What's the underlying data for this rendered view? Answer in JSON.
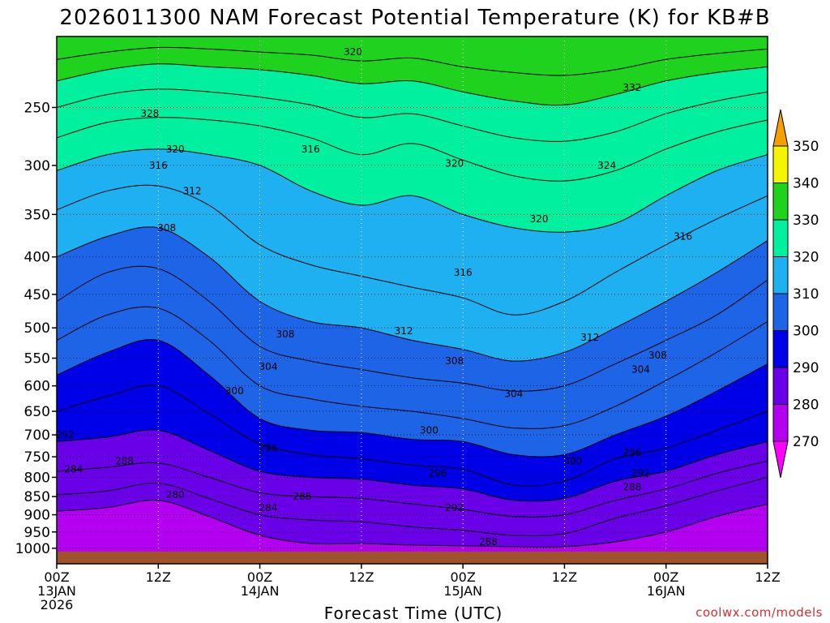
{
  "chart_data": {
    "type": "heatmap",
    "title": "2026011300 NAM Forecast Potential Temperature (K) for KB#B",
    "xlabel": "Forecast Time (UTC)",
    "ylabel": "",
    "credit": "coolwx.com/models",
    "y_axis": {
      "scale": "log",
      "range": [
        200,
        1050
      ],
      "ticks": [
        250,
        300,
        350,
        400,
        450,
        500,
        550,
        600,
        650,
        700,
        750,
        800,
        850,
        900,
        950,
        1000
      ]
    },
    "x_axis": {
      "range_hours": [
        0,
        84
      ],
      "ticks": [
        {
          "hour": 0,
          "line1": "00Z",
          "line2": "13JAN",
          "line3": "2026"
        },
        {
          "hour": 12,
          "line1": "12Z",
          "line2": "",
          "line3": ""
        },
        {
          "hour": 24,
          "line1": "00Z",
          "line2": "14JAN",
          "line3": ""
        },
        {
          "hour": 36,
          "line1": "12Z",
          "line2": "",
          "line3": ""
        },
        {
          "hour": 48,
          "line1": "00Z",
          "line2": "15JAN",
          "line3": ""
        },
        {
          "hour": 60,
          "line1": "12Z",
          "line2": "",
          "line3": ""
        },
        {
          "hour": 72,
          "line1": "00Z",
          "line2": "16JAN",
          "line3": ""
        },
        {
          "hour": 84,
          "line1": "12Z",
          "line2": "",
          "line3": ""
        }
      ]
    },
    "colorbar": {
      "levels": [
        270,
        280,
        290,
        300,
        310,
        320,
        330,
        340,
        350
      ],
      "colors": [
        "#ff00ff",
        "#b400f0",
        "#6a00e8",
        "#0000e8",
        "#1e64e6",
        "#1eb0f0",
        "#00f0a0",
        "#1ed21e",
        "#f5f500",
        "#f5a000"
      ]
    },
    "isentrope_heights": [
      {
        "theta": 280,
        "p": [
          890,
          880,
          860,
          905,
          960,
          985,
          985,
          990,
          992,
          995,
          995,
          980,
          950,
          905,
          870
        ]
      },
      {
        "theta": 284,
        "p": [
          845,
          835,
          815,
          855,
          900,
          915,
          920,
          935,
          945,
          960,
          955,
          910,
          875,
          835,
          800
        ]
      },
      {
        "theta": 288,
        "p": [
          785,
          775,
          765,
          800,
          840,
          850,
          855,
          870,
          885,
          905,
          900,
          860,
          830,
          790,
          760
        ]
      },
      {
        "theta": 292,
        "p": [
          715,
          705,
          690,
          735,
          785,
          800,
          805,
          820,
          830,
          860,
          855,
          810,
          785,
          745,
          715
        ]
      },
      {
        "theta": 296,
        "p": [
          650,
          620,
          600,
          655,
          720,
          745,
          755,
          770,
          780,
          820,
          810,
          755,
          730,
          690,
          650
        ]
      },
      {
        "theta": 300,
        "p": [
          580,
          540,
          520,
          580,
          665,
          690,
          695,
          710,
          715,
          745,
          745,
          700,
          660,
          610,
          560
        ]
      },
      {
        "theta": 304,
        "p": [
          520,
          480,
          470,
          520,
          600,
          625,
          640,
          650,
          665,
          685,
          680,
          640,
          590,
          540,
          490
        ]
      },
      {
        "theta": 308,
        "p": [
          460,
          420,
          415,
          460,
          530,
          555,
          570,
          585,
          595,
          610,
          600,
          560,
          520,
          480,
          430
        ]
      },
      {
        "theta": 312,
        "p": [
          400,
          375,
          365,
          400,
          460,
          490,
          500,
          520,
          535,
          555,
          540,
          500,
          460,
          420,
          380
        ]
      },
      {
        "theta": 316,
        "p": [
          345,
          325,
          320,
          340,
          385,
          410,
          425,
          440,
          455,
          480,
          460,
          420,
          385,
          355,
          330
        ]
      },
      {
        "theta": 320,
        "p": [
          305,
          290,
          285,
          290,
          300,
          325,
          340,
          330,
          350,
          365,
          370,
          360,
          330,
          305,
          290
        ]
      },
      {
        "theta": 324,
        "p": [
          275,
          262,
          258,
          260,
          265,
          275,
          290,
          280,
          295,
          310,
          315,
          305,
          285,
          270,
          260
        ]
      },
      {
        "theta": 328,
        "p": [
          250,
          240,
          236,
          238,
          242,
          248,
          258,
          255,
          265,
          275,
          278,
          270,
          255,
          245,
          238
        ]
      },
      {
        "theta": 332,
        "p": [
          230,
          222,
          218,
          220,
          222,
          226,
          232,
          230,
          238,
          245,
          248,
          240,
          230,
          224,
          220
        ]
      },
      {
        "theta": 336,
        "p": [
          215,
          210,
          207,
          208,
          210,
          212,
          216,
          214,
          220,
          224,
          226,
          222,
          215,
          211,
          208
        ]
      }
    ],
    "contour_labels": [
      {
        "text": "320",
        "hour": 35,
        "p": 210
      },
      {
        "text": "332",
        "hour": 68,
        "p": 235
      },
      {
        "text": "328",
        "hour": 11,
        "p": 255
      },
      {
        "text": "320",
        "hour": 14,
        "p": 285
      },
      {
        "text": "316",
        "hour": 30,
        "p": 285
      },
      {
        "text": "316",
        "hour": 12,
        "p": 300
      },
      {
        "text": "320",
        "hour": 47,
        "p": 298
      },
      {
        "text": "324",
        "hour": 65,
        "p": 300
      },
      {
        "text": "312",
        "hour": 16,
        "p": 325
      },
      {
        "text": "308",
        "hour": 13,
        "p": 365
      },
      {
        "text": "320",
        "hour": 57,
        "p": 355
      },
      {
        "text": "316",
        "hour": 74,
        "p": 375
      },
      {
        "text": "316",
        "hour": 48,
        "p": 420
      },
      {
        "text": "312",
        "hour": 41,
        "p": 505
      },
      {
        "text": "308",
        "hour": 27,
        "p": 510
      },
      {
        "text": "312",
        "hour": 63,
        "p": 515
      },
      {
        "text": "308",
        "hour": 47,
        "p": 555
      },
      {
        "text": "308",
        "hour": 71,
        "p": 545
      },
      {
        "text": "304",
        "hour": 25,
        "p": 565
      },
      {
        "text": "304",
        "hour": 69,
        "p": 570
      },
      {
        "text": "300",
        "hour": 21,
        "p": 610
      },
      {
        "text": "304",
        "hour": 54,
        "p": 615
      },
      {
        "text": "300",
        "hour": 44,
        "p": 690
      },
      {
        "text": "292",
        "hour": 1,
        "p": 700
      },
      {
        "text": "296",
        "hour": 25,
        "p": 730
      },
      {
        "text": "296",
        "hour": 68,
        "p": 740
      },
      {
        "text": "300",
        "hour": 61,
        "p": 760
      },
      {
        "text": "288",
        "hour": 8,
        "p": 760
      },
      {
        "text": "284",
        "hour": 2,
        "p": 780
      },
      {
        "text": "296",
        "hour": 45,
        "p": 790
      },
      {
        "text": "292",
        "hour": 69,
        "p": 790
      },
      {
        "text": "288",
        "hour": 68,
        "p": 825
      },
      {
        "text": "288",
        "hour": 29,
        "p": 850
      },
      {
        "text": "280",
        "hour": 14,
        "p": 845
      },
      {
        "text": "284",
        "hour": 25,
        "p": 880
      },
      {
        "text": "292",
        "hour": 47,
        "p": 880
      },
      {
        "text": "288",
        "hour": 51,
        "p": 980
      }
    ]
  }
}
